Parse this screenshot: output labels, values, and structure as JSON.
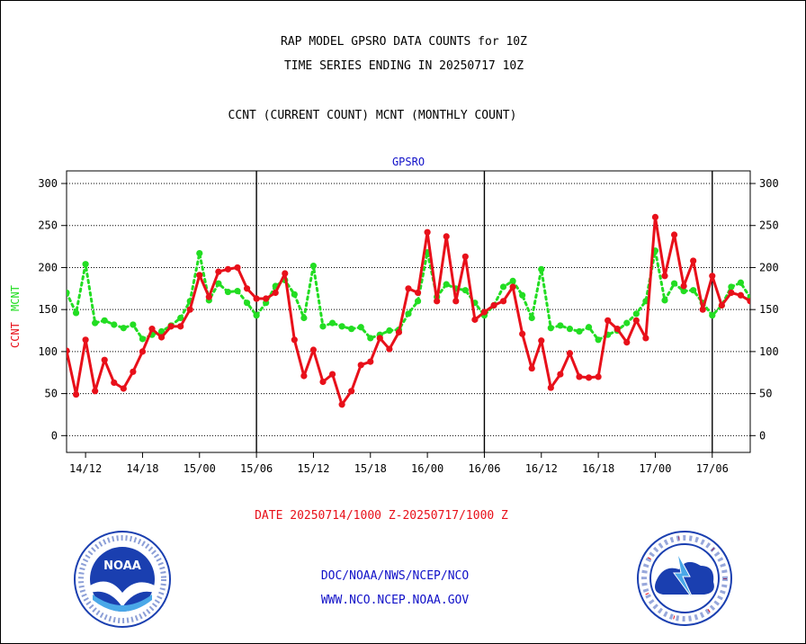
{
  "header": {
    "title1": "RAP MODEL GPSRO DATA COUNTS for 10Z",
    "title2": "TIME SERIES ENDING IN 20250717 10Z",
    "subtitle": "CCNT (CURRENT COUNT) MCNT (MONTHLY COUNT)"
  },
  "footer": {
    "date_range": "DATE 20250714/1000 Z-20250717/1000 Z",
    "org_link": "DOC/NOAA/NWS/NCEP/NCO",
    "web_link": "WWW.NCO.NCEP.NOAA.GOV",
    "noaa_logo_text": "NOAA",
    "nws_logo_text": "NATIONAL WEATHER SERVICE"
  },
  "colors": {
    "ccnt": "#e8101a",
    "mcnt": "#22dd22",
    "panel_title": "#1010c8"
  },
  "chart_data": {
    "type": "line",
    "panel_title": "GPSRO",
    "ylabel_ccnt": "CCNT",
    "ylabel_mcnt": "MCNT",
    "ylim": [
      -20,
      315
    ],
    "yticks": [
      0,
      50,
      100,
      150,
      200,
      250,
      300
    ],
    "ytick_labels": [
      "0",
      "50",
      "100",
      "150",
      "200",
      "250",
      "300"
    ],
    "grid": "dotted horizontal",
    "x_start_hour": 10,
    "x_end_hour": 82,
    "xticks": [
      {
        "hour": 12,
        "label": "14/12"
      },
      {
        "hour": 18,
        "label": "14/18"
      },
      {
        "hour": 24,
        "label": "15/00"
      },
      {
        "hour": 30,
        "label": "15/06"
      },
      {
        "hour": 36,
        "label": "15/12"
      },
      {
        "hour": 42,
        "label": "15/18"
      },
      {
        "hour": 48,
        "label": "16/00"
      },
      {
        "hour": 54,
        "label": "16/06"
      },
      {
        "hour": 60,
        "label": "16/12"
      },
      {
        "hour": 66,
        "label": "16/18"
      },
      {
        "hour": 72,
        "label": "17/00"
      },
      {
        "hour": 78,
        "label": "17/06"
      }
    ],
    "day_boundaries": [
      30,
      54,
      78
    ],
    "series": [
      {
        "name": "CCNT",
        "style": "solid",
        "values": [
          101,
          49,
          114,
          53,
          90,
          63,
          56,
          76,
          100,
          127,
          117,
          130,
          130,
          150,
          191,
          165,
          195,
          198,
          200,
          175,
          163,
          163,
          170,
          193,
          114,
          71,
          102,
          64,
          73,
          37,
          53,
          84,
          88,
          116,
          103,
          123,
          175,
          170,
          242,
          160,
          237,
          160,
          213,
          138,
          147,
          155,
          160,
          177,
          121,
          80,
          113,
          57,
          73,
          98,
          70,
          69,
          70,
          137,
          127,
          111,
          137,
          116,
          260,
          190,
          239,
          178,
          208,
          150,
          190,
          155,
          170,
          167,
          160
        ]
      },
      {
        "name": "MCNT",
        "style": "dotted",
        "values": [
          170,
          146,
          204,
          134,
          137,
          132,
          128,
          132,
          115,
          120,
          124,
          131,
          140,
          160,
          217,
          161,
          181,
          171,
          172,
          158,
          143,
          158,
          178,
          185,
          168,
          140,
          202,
          130,
          134,
          130,
          127,
          129,
          116,
          120,
          125,
          126,
          145,
          160,
          218,
          165,
          180,
          175,
          173,
          158,
          143,
          155,
          177,
          184,
          167,
          140,
          198,
          128,
          131,
          127,
          124,
          129,
          114,
          120,
          125,
          134,
          145,
          160,
          220,
          161,
          181,
          172,
          173,
          158,
          143,
          155,
          177,
          182,
          164
        ]
      }
    ]
  }
}
